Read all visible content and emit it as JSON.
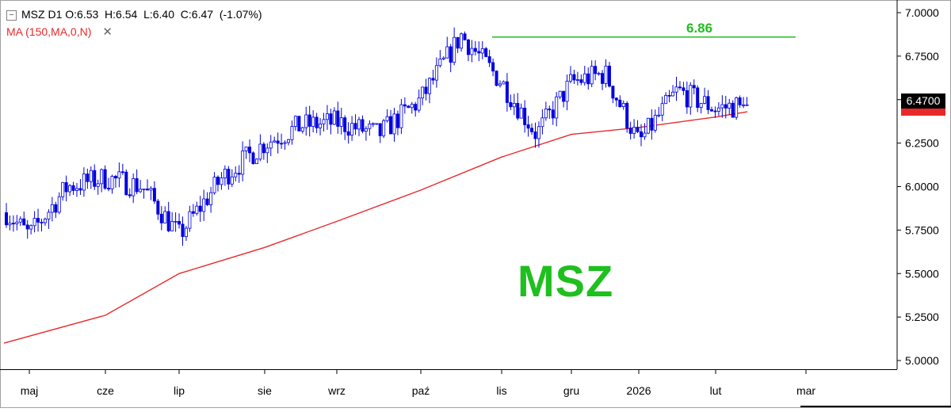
{
  "header": {
    "collapse_icon": "minus-box-icon",
    "symbol": "MSZ",
    "timeframe": "D1",
    "ohlc": "O:6.53  H:6.54  L:6.40  C:6.47  (-1.07%)",
    "indicator": "MA (150,MA,0,N)",
    "remove_icon": "close-x-icon"
  },
  "watermark": "MSZ",
  "level_label": "6.86",
  "last_price_label": "6.4700",
  "colors": {
    "candles": "#0000dd",
    "moving_average": "#e8292b",
    "level_line": "#1fbf1f",
    "watermark": "#1fbf1f"
  },
  "chart_data": {
    "type": "candlestick",
    "symbol": "MSZ",
    "timeframe": "D1",
    "ylim": [
      4.95,
      7.05
    ],
    "y_ticks": [
      "7.0000",
      "6.7500",
      "6.5000",
      "6.2500",
      "6.0000",
      "5.7500",
      "5.5000",
      "5.2500",
      "5.0000"
    ],
    "x_ticks": [
      "maj",
      "cze",
      "lip",
      "sie",
      "wrz",
      "paź",
      "lis",
      "gru",
      "2026",
      "lut",
      "mar"
    ],
    "last_close": 6.47,
    "horizontal_level": {
      "value": 6.86,
      "label": "6.86",
      "from": "paź",
      "to": "lut"
    },
    "moving_average": {
      "name": "MA (150,MA,0,N)",
      "points": [
        [
          "maj",
          5.1
        ],
        [
          "cze",
          5.26
        ],
        [
          "lip",
          5.5
        ],
        [
          "sie",
          5.65
        ],
        [
          "wrz",
          5.8
        ],
        [
          "paź",
          5.98
        ],
        [
          "lis",
          6.17
        ],
        [
          "gru",
          6.3
        ],
        [
          "2026",
          6.34
        ],
        [
          "lut",
          6.4
        ],
        [
          "end",
          6.43
        ]
      ]
    },
    "price_path": [
      [
        "start",
        5.85
      ],
      [
        "maj",
        5.72
      ],
      [
        "maj+",
        6.0
      ],
      [
        "cze",
        6.05
      ],
      [
        "cze+",
        6.0
      ],
      [
        "lip",
        5.72
      ],
      [
        "lip+",
        6.05
      ],
      [
        "sie",
        6.25
      ],
      [
        "sie+",
        6.35
      ],
      [
        "wrz",
        6.37
      ],
      [
        "wrz+",
        6.3
      ],
      [
        "paź",
        6.5
      ],
      [
        "paź+",
        6.87
      ],
      [
        "lis",
        6.6
      ],
      [
        "lis+",
        6.3
      ],
      [
        "gru",
        6.6
      ],
      [
        "gru+",
        6.65
      ],
      [
        "2026",
        6.25
      ],
      [
        "2026+",
        6.55
      ],
      [
        "lut",
        6.45
      ],
      [
        "end",
        6.47
      ]
    ]
  }
}
